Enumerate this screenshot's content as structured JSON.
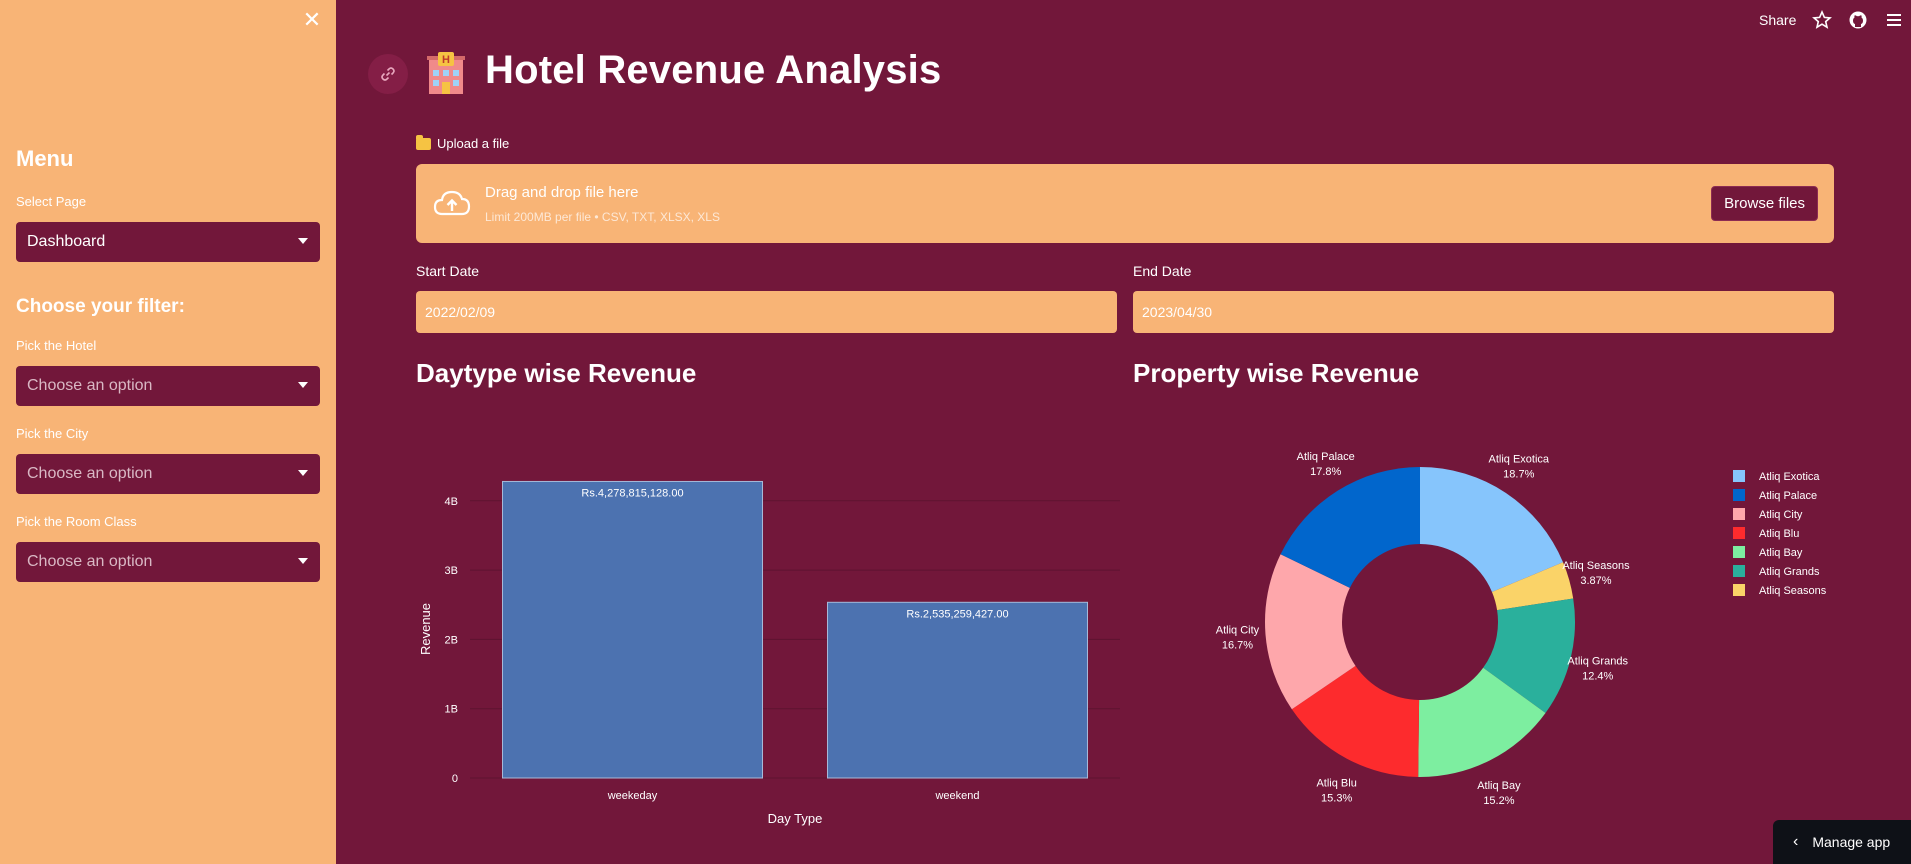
{
  "sidebar": {
    "menu_title": "Menu",
    "select_page_label": "Select Page",
    "select_page_value": "Dashboard",
    "filter_heading": "Choose your filter:",
    "hotel_label": "Pick the Hotel",
    "city_label": "Pick the City",
    "room_label": "Pick the Room Class",
    "placeholder": "Choose an option"
  },
  "topbar": {
    "share_label": "Share"
  },
  "header": {
    "title": "Hotel Revenue Analysis"
  },
  "upload": {
    "label": "Upload a file",
    "dropzone_title": "Drag and drop file here",
    "dropzone_sub": "Limit 200MB per file • CSV, TXT, XLSX, XLS",
    "browse_label": "Browse files"
  },
  "dates": {
    "start_label": "Start Date",
    "start_value": "2022/02/09",
    "end_label": "End Date",
    "end_value": "2023/04/30"
  },
  "manage_label": "Manage app",
  "colors": {
    "bg": "#72173a",
    "sidebar": "#f8b476",
    "bar": "#4c72b0"
  },
  "chart_data": [
    {
      "type": "bar",
      "title": "Daytype wise Revenue",
      "xlabel": "Day Type",
      "ylabel": "Revenue",
      "categories": [
        "weekeday",
        "weekend"
      ],
      "values": [
        4278815128,
        2535259427
      ],
      "data_labels": [
        "Rs.4,278,815,128.00",
        "Rs.2,535,259,427.00"
      ],
      "ylim": [
        0,
        4300000000
      ],
      "yticks": [
        0,
        1000000000,
        2000000000,
        3000000000,
        4000000000
      ],
      "ytick_labels": [
        "0",
        "1B",
        "2B",
        "3B",
        "4B"
      ],
      "grid": true,
      "legend": "none"
    },
    {
      "type": "pie",
      "title": "Property wise Revenue",
      "donut": true,
      "legend": "right",
      "slices": [
        {
          "label": "Atliq Exotica",
          "percent": 18.7,
          "text": "18.7%",
          "color": "#86c5fc"
        },
        {
          "label": "Atliq Seasons",
          "percent": 3.87,
          "text": "3.87%",
          "color": "#fad368"
        },
        {
          "label": "Atliq Grands",
          "percent": 12.4,
          "text": "12.4%",
          "color": "#2ab09c"
        },
        {
          "label": "Atliq Bay",
          "percent": 15.2,
          "text": "15.2%",
          "color": "#7deea0"
        },
        {
          "label": "Atliq Blu",
          "percent": 15.3,
          "text": "15.3%",
          "color": "#fd2b2d"
        },
        {
          "label": "Atliq City",
          "percent": 16.7,
          "text": "16.7%",
          "color": "#fea7ab"
        },
        {
          "label": "Atliq Palace",
          "percent": 17.8,
          "text": "17.8%",
          "color": "#0166cc"
        }
      ],
      "legend_order": [
        "Atliq Exotica",
        "Atliq Palace",
        "Atliq City",
        "Atliq Blu",
        "Atliq Bay",
        "Atliq Grands",
        "Atliq Seasons"
      ]
    }
  ]
}
